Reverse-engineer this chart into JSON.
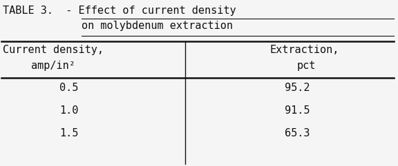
{
  "title_prefix": "TABLE 3.  - ",
  "title_underlined1": "Effect of current density",
  "title_underlined2": "on molybdenum extraction",
  "col1_header_line1": "Current density,",
  "col1_header_line2": "amp/in²",
  "col2_header_line1": "Extraction,",
  "col2_header_line2": "pct",
  "col1_data": [
    "0.5",
    "1.0",
    "1.5"
  ],
  "col2_data": [
    "95.2",
    "91.5",
    "65.3"
  ],
  "bg_color": "#f5f5f5",
  "text_color": "#111111",
  "font_size": 11,
  "title_font_size": 11
}
